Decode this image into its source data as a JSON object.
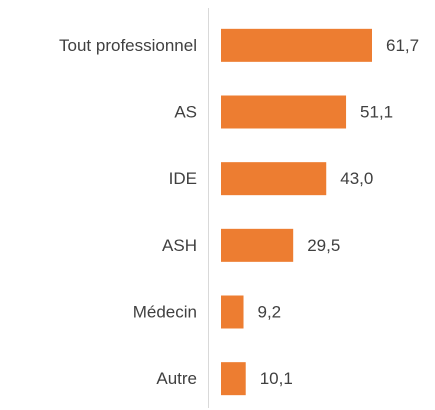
{
  "chart_data": {
    "type": "bar",
    "orientation": "horizontal",
    "categories": [
      "Tout professionnel",
      "AS",
      "IDE",
      "ASH",
      "Médecin",
      "Autre"
    ],
    "values": [
      61.7,
      51.1,
      43.0,
      29.5,
      9.2,
      10.1
    ],
    "value_labels": [
      "61,7",
      "51,1",
      "43,0",
      "29,5",
      "9,2",
      "10,1"
    ],
    "color": "#ed7d31"
  }
}
